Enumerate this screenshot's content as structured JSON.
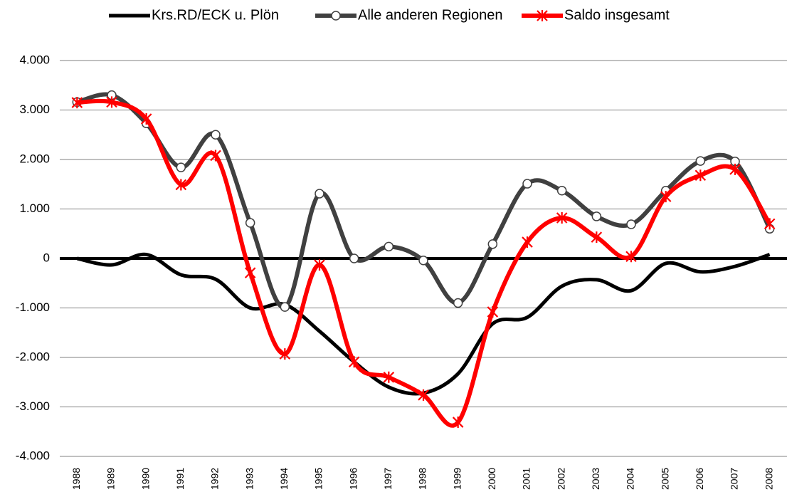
{
  "chart_data": {
    "type": "line",
    "categories": [
      "1988",
      "1989",
      "1990",
      "1991",
      "1992",
      "1993",
      "1994",
      "1995",
      "1996",
      "1997",
      "1998",
      "1999",
      "2000",
      "2001",
      "2002",
      "2003",
      "2004",
      "2005",
      "2006",
      "2007",
      "2008"
    ],
    "series": [
      {
        "name": "Krs.RD/ECK u. Plön",
        "color": "#000000",
        "marker": "none",
        "values": [
          0,
          -130,
          80,
          -330,
          -420,
          -1000,
          -930,
          -1470,
          -2090,
          -2600,
          -2720,
          -2330,
          -1320,
          -1190,
          -560,
          -430,
          -650,
          -100,
          -270,
          -160,
          80
        ]
      },
      {
        "name": "Alle anderen Regionen",
        "color": "#404040",
        "marker": "circle",
        "values": [
          3160,
          3300,
          2730,
          1840,
          2500,
          720,
          -980,
          1310,
          0,
          240,
          -40,
          -900,
          290,
          1510,
          1370,
          850,
          690,
          1370,
          1970,
          1960,
          600
        ]
      },
      {
        "name": "Saldo insgesamt",
        "color": "#ff0000",
        "marker": "star",
        "values": [
          3150,
          3160,
          2820,
          1490,
          2080,
          -290,
          -1930,
          -130,
          -2090,
          -2400,
          -2760,
          -3310,
          -1080,
          330,
          820,
          430,
          40,
          1250,
          1680,
          1800,
          700
        ]
      }
    ],
    "ylim": [
      -4000,
      4000
    ],
    "yticks": [
      {
        "value": -4000,
        "label": "-4.000"
      },
      {
        "value": -3000,
        "label": "-3.000"
      },
      {
        "value": -2000,
        "label": "-2.000"
      },
      {
        "value": -1000,
        "label": "-1.000"
      },
      0,
      {
        "value": 1000,
        "label": "1.000"
      },
      {
        "value": 2000,
        "label": "2.000"
      },
      {
        "value": 3000,
        "label": "3.000"
      },
      {
        "value": 4000,
        "label": "4.000"
      }
    ],
    "grid": true,
    "smooth": true,
    "legend": "top"
  }
}
